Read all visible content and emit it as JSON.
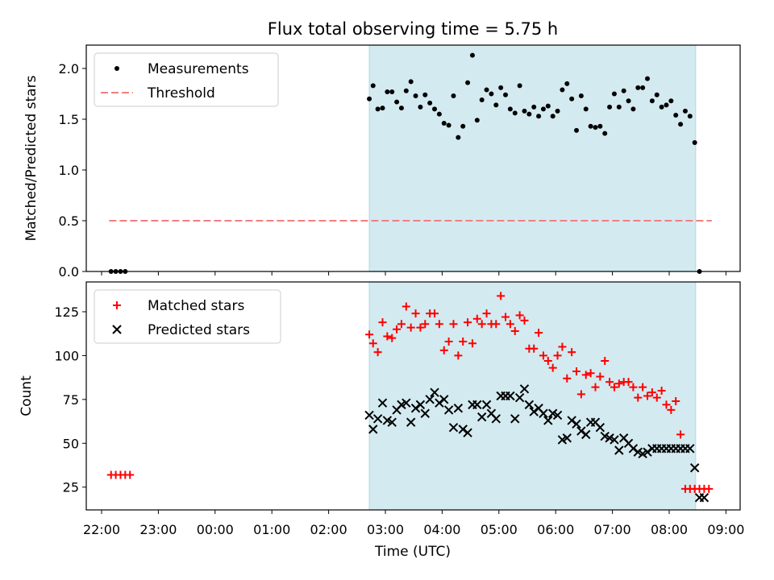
{
  "figure": {
    "title": "Flux total observing time = 5.75 h",
    "xlabel": "Time (UTC)",
    "x_ticks": [
      "22:00",
      "23:00",
      "00:00",
      "01:00",
      "02:00",
      "03:00",
      "04:00",
      "05:00",
      "06:00",
      "07:00",
      "08:00",
      "09:00"
    ],
    "observing_window": {
      "start": "02:43",
      "end": "08:28",
      "color": "#d3eaf0"
    }
  },
  "colors": {
    "measurements": "#000000",
    "threshold": "#f08080",
    "matched": "#ff0000",
    "predicted": "#000000",
    "window": "#add8e6"
  },
  "chart_data": [
    {
      "type": "scatter",
      "ylabel": "Matched/Predicted stars",
      "ylim": [
        0,
        2.23
      ],
      "y_ticks": [
        "0.0",
        "0.5",
        "1.0",
        "1.5",
        "2.0"
      ],
      "legend": {
        "placement": "top-left",
        "entries": [
          "Measurements",
          "Threshold"
        ]
      },
      "threshold": {
        "name": "Threshold",
        "value": 0.5,
        "x_range": [
          "22:08",
          "08:45"
        ]
      },
      "series": [
        {
          "name": "Measurements",
          "marker": "dot",
          "x": [
            "22:10",
            "22:15",
            "22:20",
            "22:25",
            "02:43",
            "02:47",
            "02:52",
            "02:57",
            "03:02",
            "03:07",
            "03:12",
            "03:17",
            "03:22",
            "03:27",
            "03:32",
            "03:37",
            "03:42",
            "03:47",
            "03:52",
            "03:57",
            "04:02",
            "04:07",
            "04:12",
            "04:17",
            "04:22",
            "04:27",
            "04:32",
            "04:37",
            "04:42",
            "04:47",
            "04:52",
            "04:57",
            "05:02",
            "05:07",
            "05:12",
            "05:17",
            "05:22",
            "05:27",
            "05:32",
            "05:37",
            "05:42",
            "05:47",
            "05:52",
            "05:57",
            "06:02",
            "06:07",
            "06:12",
            "06:17",
            "06:22",
            "06:27",
            "06:32",
            "06:37",
            "06:42",
            "06:47",
            "06:52",
            "06:57",
            "07:02",
            "07:07",
            "07:12",
            "07:17",
            "07:22",
            "07:27",
            "07:32",
            "07:37",
            "07:42",
            "07:47",
            "07:52",
            "07:57",
            "08:02",
            "08:07",
            "08:12",
            "08:17",
            "08:22",
            "08:27",
            "08:32"
          ],
          "y": [
            0,
            0,
            0,
            0,
            1.7,
            1.83,
            1.6,
            1.61,
            1.77,
            1.77,
            1.67,
            1.61,
            1.78,
            1.87,
            1.73,
            1.62,
            1.74,
            1.66,
            1.6,
            1.55,
            1.46,
            1.44,
            1.73,
            1.32,
            1.43,
            1.86,
            2.13,
            1.49,
            1.69,
            1.79,
            1.75,
            1.64,
            1.81,
            1.74,
            1.6,
            1.56,
            1.83,
            1.58,
            1.55,
            1.62,
            1.53,
            1.6,
            1.63,
            1.53,
            1.58,
            1.79,
            1.85,
            1.7,
            1.39,
            1.73,
            1.6,
            1.43,
            1.42,
            1.43,
            1.36,
            1.62,
            1.75,
            1.62,
            1.78,
            1.68,
            1.6,
            1.81,
            1.81,
            1.9,
            1.68,
            1.74,
            1.62,
            1.64,
            1.68,
            1.54,
            1.45,
            1.58,
            1.53,
            1.27,
            0
          ]
        }
      ]
    },
    {
      "type": "scatter",
      "ylabel": "Count",
      "ylim": [
        12,
        142
      ],
      "y_ticks": [
        "25",
        "50",
        "75",
        "100",
        "125"
      ],
      "legend": {
        "placement": "top-left",
        "entries": [
          "Matched stars",
          "Predicted stars"
        ]
      },
      "series": [
        {
          "name": "Matched stars",
          "marker": "plus",
          "x": [
            "22:10",
            "22:15",
            "22:20",
            "22:25",
            "22:30",
            "02:43",
            "02:47",
            "02:52",
            "02:57",
            "03:02",
            "03:07",
            "03:12",
            "03:17",
            "03:22",
            "03:27",
            "03:32",
            "03:37",
            "03:42",
            "03:47",
            "03:52",
            "03:57",
            "04:02",
            "04:07",
            "04:12",
            "04:17",
            "04:22",
            "04:27",
            "04:32",
            "04:37",
            "04:42",
            "04:47",
            "04:52",
            "04:57",
            "05:02",
            "05:07",
            "05:12",
            "05:17",
            "05:22",
            "05:27",
            "05:32",
            "05:37",
            "05:42",
            "05:47",
            "05:52",
            "05:57",
            "06:02",
            "06:07",
            "06:12",
            "06:17",
            "06:22",
            "06:27",
            "06:32",
            "06:37",
            "06:42",
            "06:47",
            "06:52",
            "06:57",
            "07:02",
            "07:07",
            "07:12",
            "07:17",
            "07:22",
            "07:27",
            "07:32",
            "07:37",
            "07:42",
            "07:47",
            "07:52",
            "07:57",
            "08:02",
            "08:07",
            "08:12",
            "08:17",
            "08:22",
            "08:27",
            "08:32",
            "08:37",
            "08:42"
          ],
          "y": [
            32,
            32,
            32,
            32,
            32,
            112,
            107,
            102,
            119,
            111,
            110,
            115,
            118,
            128,
            116,
            124,
            116,
            118,
            124,
            124,
            118,
            103,
            108,
            118,
            100,
            108,
            119,
            107,
            121,
            118,
            124,
            118,
            118,
            134,
            122,
            118,
            114,
            123,
            120,
            104,
            104,
            113,
            100,
            97,
            93,
            100,
            105,
            87,
            102,
            91,
            78,
            89,
            90,
            82,
            88,
            97,
            85,
            82,
            84,
            85,
            85,
            82,
            76,
            82,
            77,
            79,
            76,
            80,
            72,
            69,
            74,
            55,
            24,
            24,
            24,
            24,
            24,
            24
          ],
          "y_note": ""
        },
        {
          "name": "Predicted stars",
          "marker": "x",
          "x": [
            "02:43",
            "02:47",
            "02:52",
            "02:57",
            "03:02",
            "03:07",
            "03:12",
            "03:17",
            "03:22",
            "03:27",
            "03:32",
            "03:37",
            "03:42",
            "03:47",
            "03:52",
            "03:57",
            "04:02",
            "04:07",
            "04:12",
            "04:17",
            "04:22",
            "04:27",
            "04:32",
            "04:37",
            "04:42",
            "04:47",
            "04:52",
            "04:57",
            "05:02",
            "05:07",
            "05:12",
            "05:17",
            "05:22",
            "05:27",
            "05:32",
            "05:37",
            "05:42",
            "05:47",
            "05:52",
            "05:57",
            "06:02",
            "06:07",
            "06:12",
            "06:17",
            "06:22",
            "06:27",
            "06:32",
            "06:37",
            "06:42",
            "06:47",
            "06:52",
            "06:57",
            "07:02",
            "07:07",
            "07:12",
            "07:17",
            "07:22",
            "07:27",
            "07:32",
            "07:37",
            "07:42",
            "07:47",
            "07:52",
            "07:57",
            "08:02",
            "08:07",
            "08:12",
            "08:17",
            "08:22",
            "08:27",
            "08:32",
            "08:37"
          ],
          "y": [
            66,
            58,
            64,
            73,
            63,
            62,
            69,
            72,
            73,
            62,
            70,
            72,
            67,
            75,
            79,
            73,
            75,
            69,
            59,
            70,
            58,
            56,
            72,
            72,
            65,
            72,
            67,
            64,
            77,
            77,
            77,
            64,
            76,
            81,
            72,
            68,
            70,
            67,
            63,
            67,
            66,
            52,
            53,
            63,
            61,
            57,
            55,
            62,
            62,
            59,
            54,
            53,
            52,
            46,
            53,
            50,
            47,
            45,
            44,
            45,
            47,
            47,
            47,
            47,
            47,
            47,
            47,
            47,
            47,
            36,
            19,
            19
          ]
        }
      ]
    }
  ]
}
